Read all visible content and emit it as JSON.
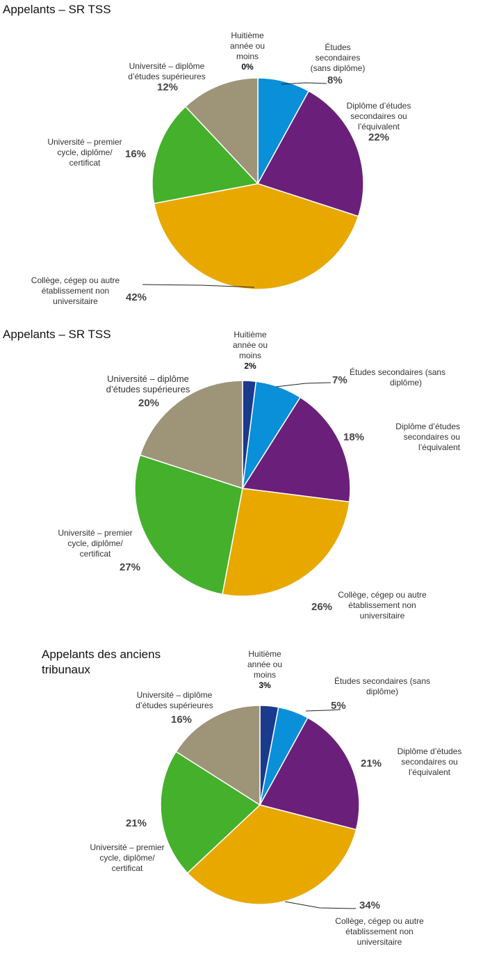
{
  "colors": {
    "huitieme": "#1a3a8c",
    "etudes_sans": "#0a8fd9",
    "diplome_secondaire": "#6a1f7a",
    "college": "#e8a800",
    "univ_premier": "#44b02c",
    "univ_superieur": "#9e9478",
    "leader": "#222222"
  },
  "chart_data": [
    {
      "type": "pie",
      "title": "Appelants – SR TSS",
      "slices": [
        {
          "key": "huitieme",
          "label": "Huitième année ou moins",
          "value": 0,
          "value_label": "0%"
        },
        {
          "key": "etudes_sans",
          "label": "Études secondaires (sans diplôme)",
          "value": 8,
          "value_label": "8%"
        },
        {
          "key": "diplome_secondaire",
          "label": "Diplôme d’études secondaires ou l’équivalent",
          "value": 22,
          "value_label": "22%"
        },
        {
          "key": "college",
          "label": "Collège, cégep ou autre établissement non universitaire",
          "value": 42,
          "value_label": "42%"
        },
        {
          "key": "univ_premier",
          "label": "Université – premier cycle, diplôme/ certificat",
          "value": 16,
          "value_label": "16%"
        },
        {
          "key": "univ_superieur",
          "label": "Université – diplôme d’études supérieures",
          "value": 12,
          "value_label": "12%"
        }
      ],
      "label_lines": {
        "huitieme": [
          "Huitième",
          "année ou",
          "moins"
        ],
        "etudes_sans": [
          "Études",
          "secondaires",
          "(sans diplôme)"
        ],
        "diplome_secondaire": [
          "Diplôme d’études",
          "secondaires ou",
          "l’équivalent"
        ],
        "college": [
          "Collège, cégep ou autre",
          "établissement non",
          "universitaire"
        ],
        "univ_premier": [
          "Université – premier",
          "cycle, diplôme/",
          "certificat"
        ],
        "univ_superieur": [
          "Université – diplôme",
          "d’études supérieures"
        ]
      }
    },
    {
      "type": "pie",
      "title": "Appelants – SR TSS",
      "slices": [
        {
          "key": "huitieme",
          "label": "Huitième année ou moins",
          "value": 2,
          "value_label": "2%"
        },
        {
          "key": "etudes_sans",
          "label": "Études secondaires (sans diplôme)",
          "value": 7,
          "value_label": "7%"
        },
        {
          "key": "diplome_secondaire",
          "label": "Diplôme d’études secondaires ou l’équivalent",
          "value": 18,
          "value_label": "18%"
        },
        {
          "key": "college",
          "label": "Collège, cégep ou autre établissement non universitaire",
          "value": 26,
          "value_label": "26%"
        },
        {
          "key": "univ_premier",
          "label": "Université – premier cycle, diplôme/ certificat",
          "value": 27,
          "value_label": "27%"
        },
        {
          "key": "univ_superieur",
          "label": "Université – diplôme d’études supérieures",
          "value": 20,
          "value_label": "20%"
        }
      ],
      "label_lines": {
        "huitieme": [
          "Huitième",
          "année ou",
          "moins"
        ],
        "etudes_sans": [
          "Études secondaires (sans",
          "diplôme)"
        ],
        "diplome_secondaire": [
          "Diplôme d’études",
          "secondaires ou",
          "l’équivalent"
        ],
        "college": [
          "Collège, cégep ou autre",
          "établissement non",
          "universitaire"
        ],
        "univ_premier": [
          "Université – premier",
          "cycle, diplôme/",
          "certificat"
        ],
        "univ_superieur": [
          "Université – diplôme",
          "d’études supérieures"
        ]
      }
    },
    {
      "type": "pie",
      "title": "Appelants des anciens tribunaux",
      "title_lines": [
        "Appelants des anciens",
        "tribunaux"
      ],
      "slices": [
        {
          "key": "huitieme",
          "label": "Huitième année ou moins",
          "value": 3,
          "value_label": "3%"
        },
        {
          "key": "etudes_sans",
          "label": "Études secondaires (sans diplôme)",
          "value": 5,
          "value_label": "5%"
        },
        {
          "key": "diplome_secondaire",
          "label": "Diplôme d’études secondaires ou l’équivalent",
          "value": 21,
          "value_label": "21%"
        },
        {
          "key": "college",
          "label": "Collège, cégep ou autre établissement non universitaire",
          "value": 34,
          "value_label": "34%"
        },
        {
          "key": "univ_premier",
          "label": "Université – premier cycle, diplôme/ certificat",
          "value": 21,
          "value_label": "21%"
        },
        {
          "key": "univ_superieur",
          "label": "Université – diplôme d’études supérieures",
          "value": 16,
          "value_label": "16%"
        }
      ],
      "label_lines": {
        "huitieme": [
          "Huitième",
          "année ou",
          "moins"
        ],
        "etudes_sans": [
          "Études secondaires (sans",
          "diplôme)"
        ],
        "diplome_secondaire": [
          "Diplôme d’études",
          "secondaires ou",
          "l’équivalent"
        ],
        "college": [
          "Collège, cégep ou autre",
          "établissement non",
          "universitaire"
        ],
        "univ_premier": [
          "Université – premier",
          "cycle, diplôme/",
          "certificat"
        ],
        "univ_superieur": [
          "Université – diplôme",
          "d’études supérieures"
        ]
      }
    }
  ]
}
